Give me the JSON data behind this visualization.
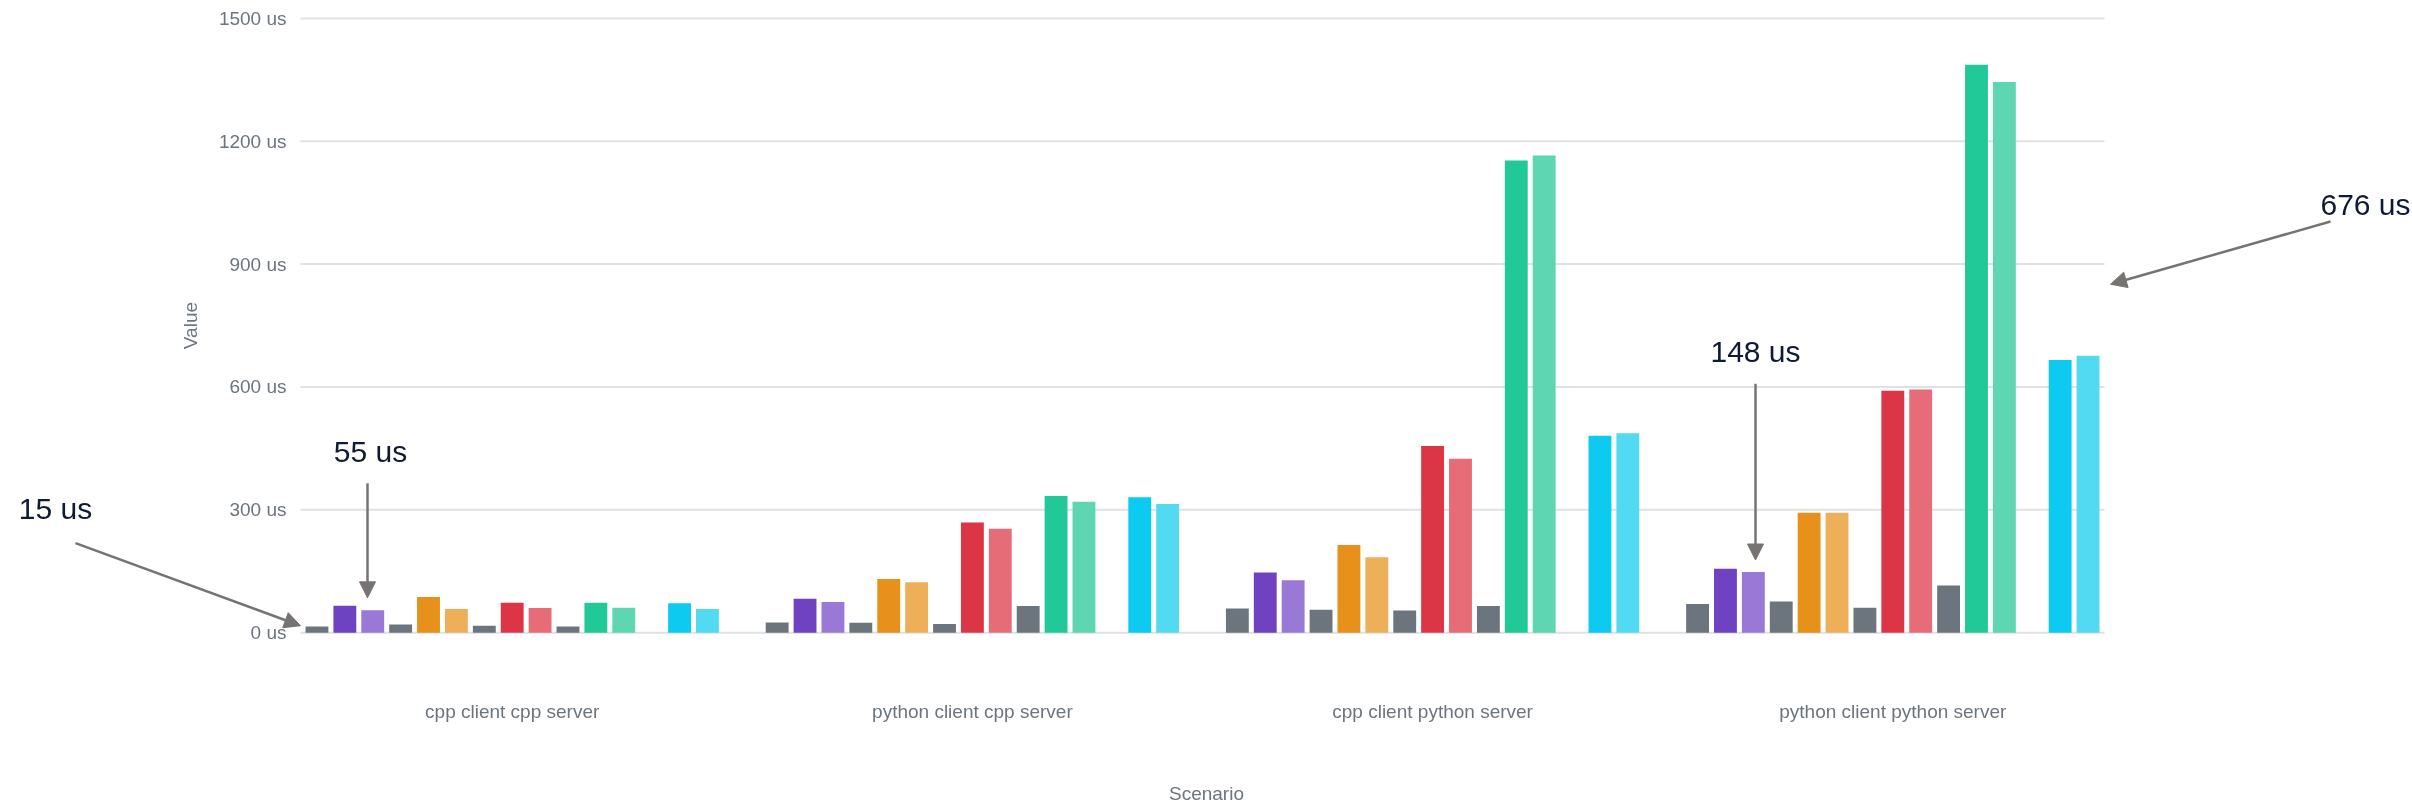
{
  "chart_data": {
    "type": "bar",
    "xlabel": "Scenario",
    "ylabel": "Value",
    "categories": [
      "cpp client cpp server",
      "python client cpp server",
      "cpp client python server",
      "python client python server"
    ],
    "ylim": [
      0,
      1500
    ],
    "yticks": [
      {
        "value": 0,
        "label": "0 us"
      },
      {
        "value": 300,
        "label": "300 us"
      },
      {
        "value": 600,
        "label": "600 us"
      },
      {
        "value": 900,
        "label": "900 us"
      },
      {
        "value": 1200,
        "label": "1200 us"
      },
      {
        "value": 1500,
        "label": "1500 us"
      }
    ],
    "grid": "y",
    "series": [
      {
        "color": "#6c757d",
        "values": [
          15,
          25,
          59,
          70
        ]
      },
      {
        "color": "#6f42c1",
        "values": [
          66,
          83,
          147,
          156
        ]
      },
      {
        "color": "#9a78d5",
        "values": [
          55,
          75,
          128,
          148
        ]
      },
      {
        "color": "#6c757d",
        "values": [
          20,
          24,
          56,
          76
        ]
      },
      {
        "color": "#e8911a",
        "values": [
          87,
          131,
          214,
          293
        ]
      },
      {
        "color": "#edb059",
        "values": [
          58,
          123,
          184,
          293
        ]
      },
      {
        "color": "#6c757d",
        "values": [
          17,
          21,
          54,
          61
        ]
      },
      {
        "color": "#dc3545",
        "values": [
          73,
          269,
          456,
          591
        ]
      },
      {
        "color": "#e66d78",
        "values": [
          60,
          254,
          425,
          594
        ]
      },
      {
        "color": "#6c757d",
        "values": [
          15,
          65,
          65,
          115
        ]
      },
      {
        "color": "#20c997",
        "values": [
          73,
          334,
          1153,
          1387
        ]
      },
      {
        "color": "#5dd6b1",
        "values": [
          61,
          320,
          1165,
          1345
        ]
      },
      {
        "values": [
          null,
          null,
          null,
          null
        ]
      },
      {
        "color": "#0dcaf0",
        "values": [
          72,
          331,
          481,
          666
        ]
      },
      {
        "color": "#53daf3",
        "values": [
          58,
          314,
          487,
          676
        ]
      }
    ],
    "annotations": [
      "15 us",
      "55 us",
      "148 us",
      "676 us"
    ]
  }
}
